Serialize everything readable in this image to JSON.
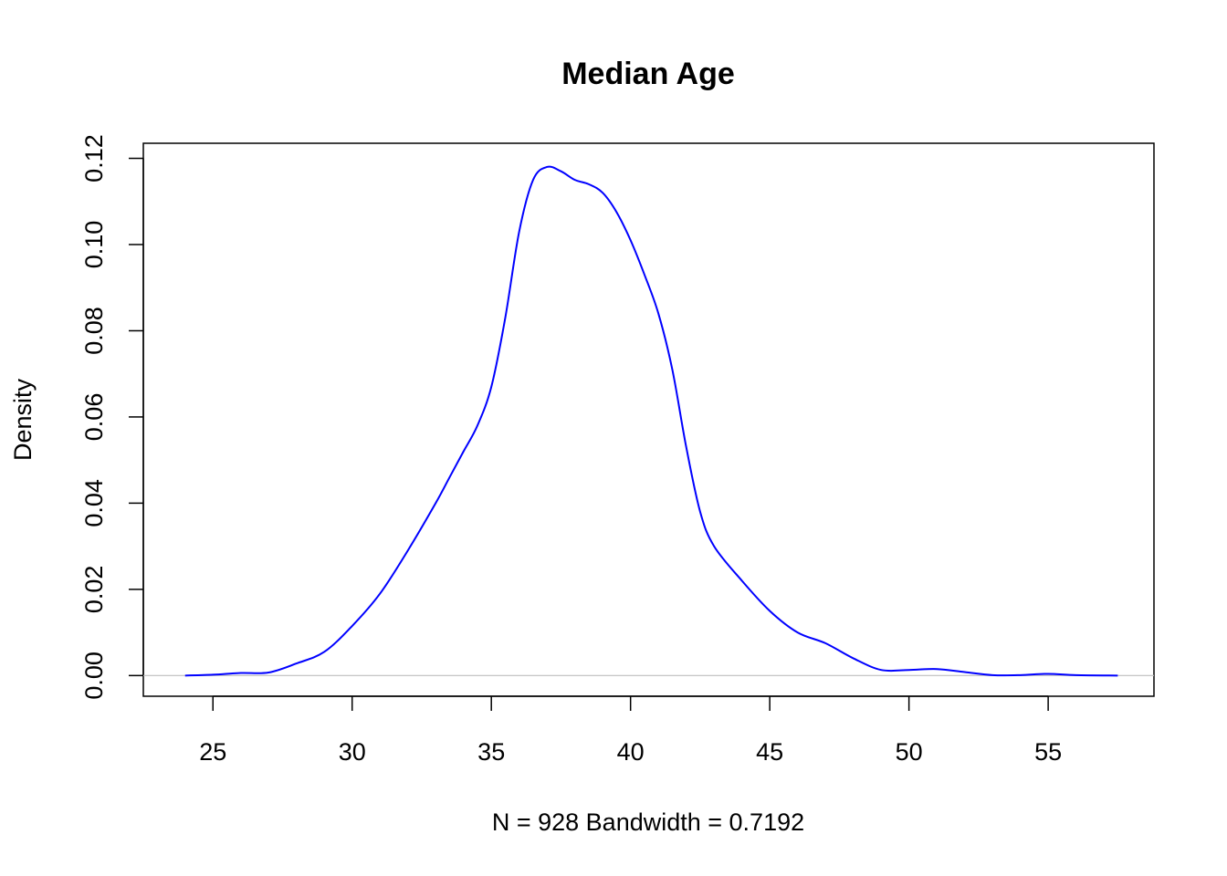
{
  "chart_data": {
    "type": "line",
    "title": "Median Age",
    "xlabel": "N = 928   Bandwidth = 0.7192",
    "ylabel": "Density",
    "xlim": [
      22.5,
      58.8
    ],
    "ylim": [
      -0.0048,
      0.1235
    ],
    "x_ticks": [
      25,
      30,
      35,
      40,
      45,
      50,
      55
    ],
    "x_tick_labels": [
      "25",
      "30",
      "35",
      "40",
      "45",
      "50",
      "55"
    ],
    "y_ticks": [
      0.0,
      0.02,
      0.04,
      0.06,
      0.08,
      0.1,
      0.12
    ],
    "y_tick_labels": [
      "0.00",
      "0.02",
      "0.04",
      "0.06",
      "0.08",
      "0.10",
      "0.12"
    ],
    "grid": false,
    "line_color": "#0000ff",
    "baseline_color": "#bebebe",
    "series": [
      {
        "x": [
          24.0,
          25.0,
          26.0,
          27.0,
          28.0,
          29.0,
          30.0,
          31.0,
          32.0,
          33.0,
          33.5,
          34.0,
          34.5,
          35.0,
          35.5,
          36.0,
          36.5,
          37.0,
          37.5,
          38.0,
          38.5,
          39.0,
          39.5,
          40.0,
          40.5,
          41.0,
          41.5,
          42.0,
          42.5,
          43.0,
          44.0,
          45.0,
          46.0,
          47.0,
          48.0,
          49.0,
          50.0,
          51.0,
          52.0,
          53.0,
          54.0,
          55.0,
          56.0,
          57.5
        ],
        "y": [
          0.0,
          0.0002,
          0.0006,
          0.0007,
          0.0028,
          0.0055,
          0.0115,
          0.019,
          0.029,
          0.04,
          0.046,
          0.052,
          0.058,
          0.067,
          0.083,
          0.103,
          0.115,
          0.118,
          0.117,
          0.115,
          0.114,
          0.112,
          0.1075,
          0.101,
          0.093,
          0.084,
          0.071,
          0.053,
          0.038,
          0.03,
          0.022,
          0.015,
          0.01,
          0.0075,
          0.004,
          0.0013,
          0.0013,
          0.0015,
          0.0008,
          0.0001,
          0.0001,
          0.0004,
          0.0001,
          0.0
        ]
      }
    ]
  }
}
